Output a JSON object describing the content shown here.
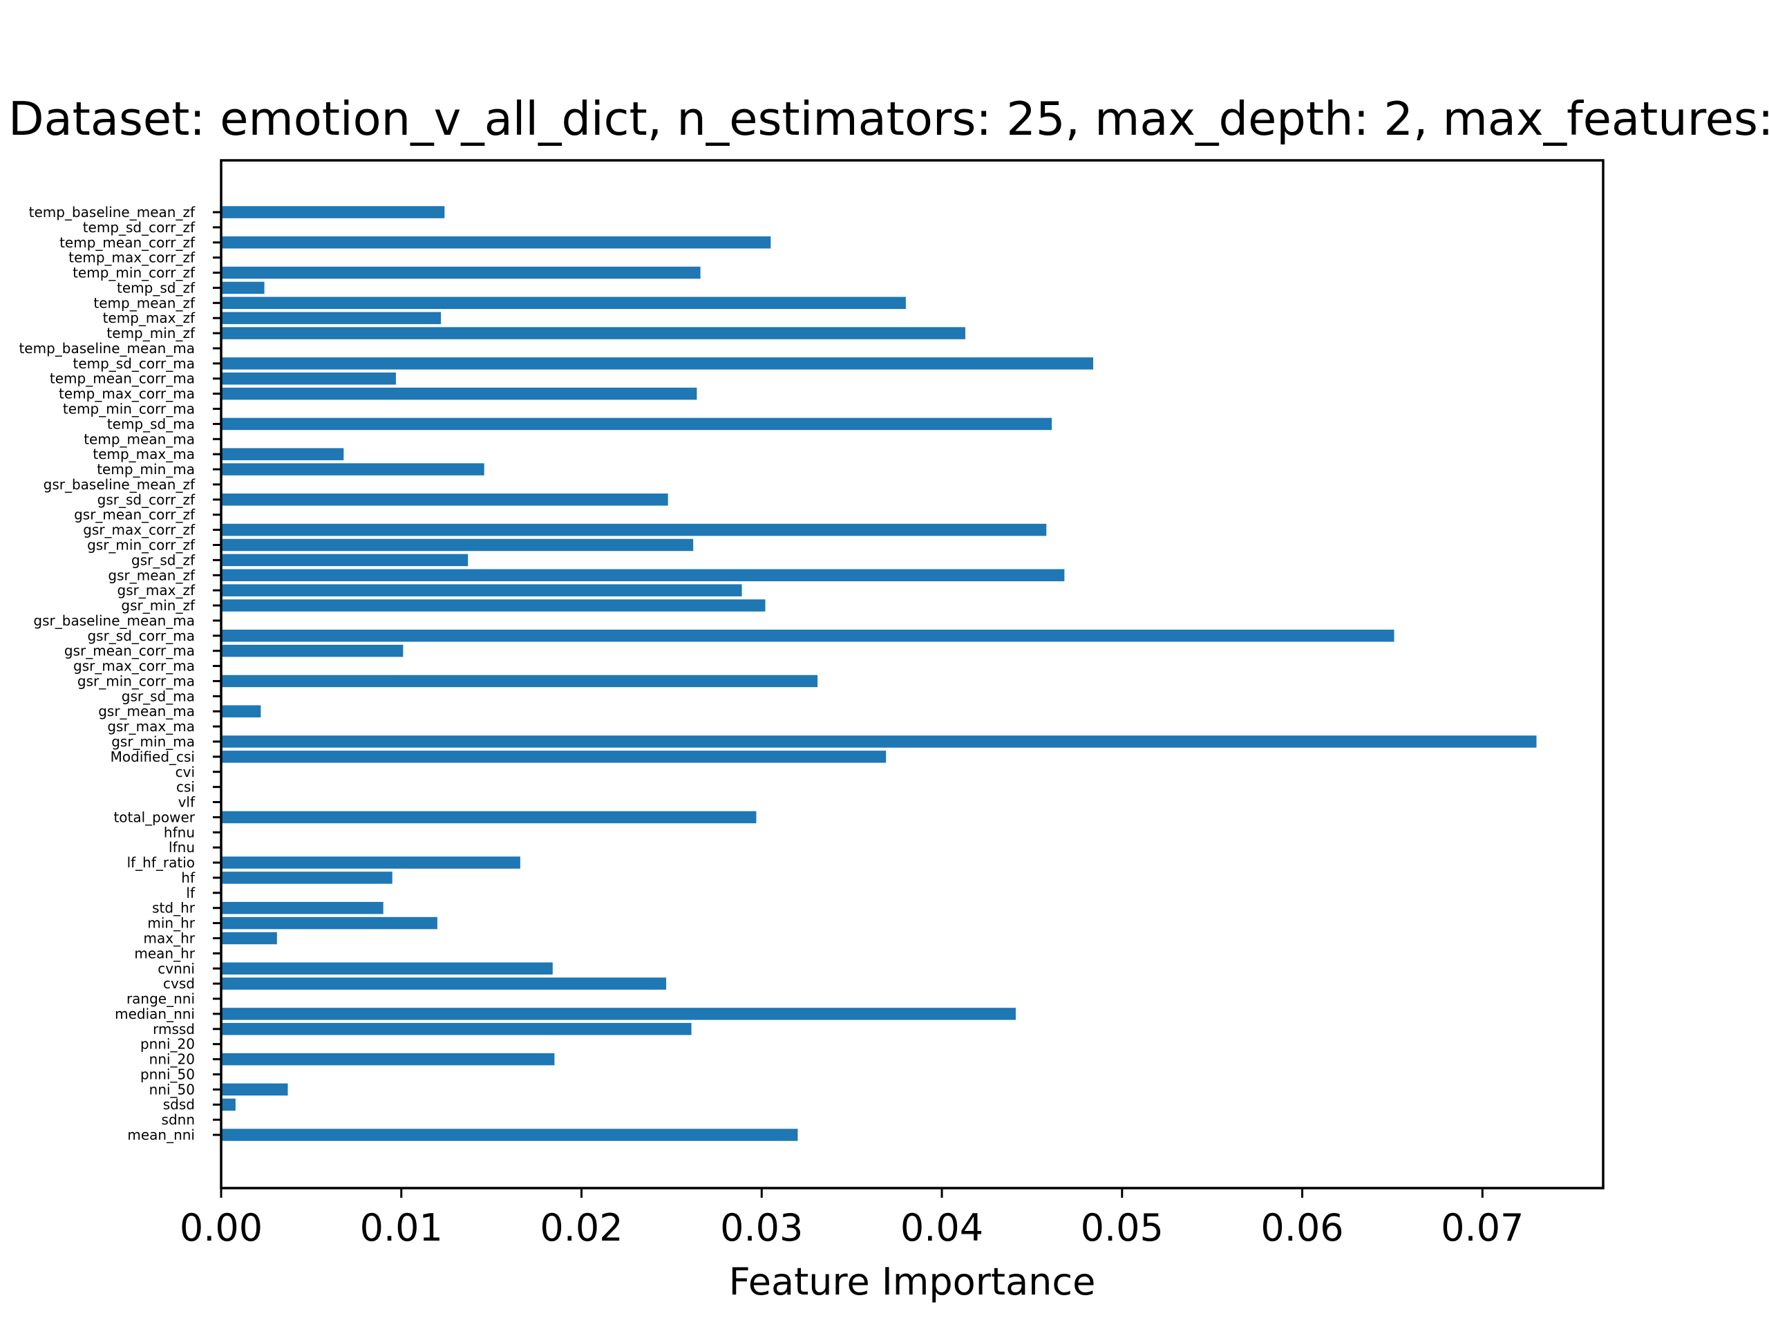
{
  "chart_data": {
    "type": "bar",
    "orientation": "horizontal",
    "title": "Dataset: emotion_v_all_dict, n_estimators: 25, max_depth: 2, max_features:",
    "xlabel": "Feature Importance",
    "ylabel": "",
    "xlim": [
      0.0,
      0.0767
    ],
    "xticks": [
      0.0,
      0.01,
      0.02,
      0.03,
      0.04,
      0.05,
      0.06,
      0.07
    ],
    "xtick_labels": [
      "0.00",
      "0.01",
      "0.02",
      "0.03",
      "0.04",
      "0.05",
      "0.06",
      "0.07"
    ],
    "grid": false,
    "legend": false,
    "bar_color": "#1f77b4",
    "categories": [
      "mean_nni",
      "sdnn",
      "sdsd",
      "nni_50",
      "pnni_50",
      "nni_20",
      "pnni_20",
      "rmssd",
      "median_nni",
      "range_nni",
      "cvsd",
      "cvnni",
      "mean_hr",
      "max_hr",
      "min_hr",
      "std_hr",
      "lf",
      "hf",
      "lf_hf_ratio",
      "lfnu",
      "hfnu",
      "total_power",
      "vlf",
      "csi",
      "cvi",
      "Modified_csi",
      "gsr_min_ma",
      "gsr_max_ma",
      "gsr_mean_ma",
      "gsr_sd_ma",
      "gsr_min_corr_ma",
      "gsr_max_corr_ma",
      "gsr_mean_corr_ma",
      "gsr_sd_corr_ma",
      "gsr_baseline_mean_ma",
      "gsr_min_zf",
      "gsr_max_zf",
      "gsr_mean_zf",
      "gsr_sd_zf",
      "gsr_min_corr_zf",
      "gsr_max_corr_zf",
      "gsr_mean_corr_zf",
      "gsr_sd_corr_zf",
      "gsr_baseline_mean_zf",
      "temp_min_ma",
      "temp_max_ma",
      "temp_mean_ma",
      "temp_sd_ma",
      "temp_min_corr_ma",
      "temp_max_corr_ma",
      "temp_mean_corr_ma",
      "temp_sd_corr_ma",
      "temp_baseline_mean_ma",
      "temp_min_zf",
      "temp_max_zf",
      "temp_mean_zf",
      "temp_sd_zf",
      "temp_min_corr_zf",
      "temp_max_corr_zf",
      "temp_mean_corr_zf",
      "temp_sd_corr_zf",
      "temp_baseline_mean_zf"
    ],
    "values": [
      0.032,
      0.0,
      0.0008,
      0.0037,
      0.0,
      0.0185,
      0.0,
      0.0261,
      0.0441,
      0.0,
      0.0247,
      0.0184,
      0.0,
      0.0031,
      0.012,
      0.009,
      0.0,
      0.0095,
      0.0166,
      0.0,
      0.0,
      0.0297,
      0.0,
      0.0,
      0.0,
      0.0369,
      0.073,
      0.0,
      0.0022,
      0.0,
      0.0331,
      0.0,
      0.0101,
      0.0651,
      0.0,
      0.0302,
      0.0289,
      0.0468,
      0.0137,
      0.0262,
      0.0458,
      0.0,
      0.0248,
      0.0,
      0.0146,
      0.0068,
      0.0,
      0.0461,
      0.0,
      0.0264,
      0.0097,
      0.0484,
      0.0,
      0.0413,
      0.0122,
      0.038,
      0.0024,
      0.0266,
      0.0,
      0.0305,
      0.0,
      0.0124
    ]
  }
}
